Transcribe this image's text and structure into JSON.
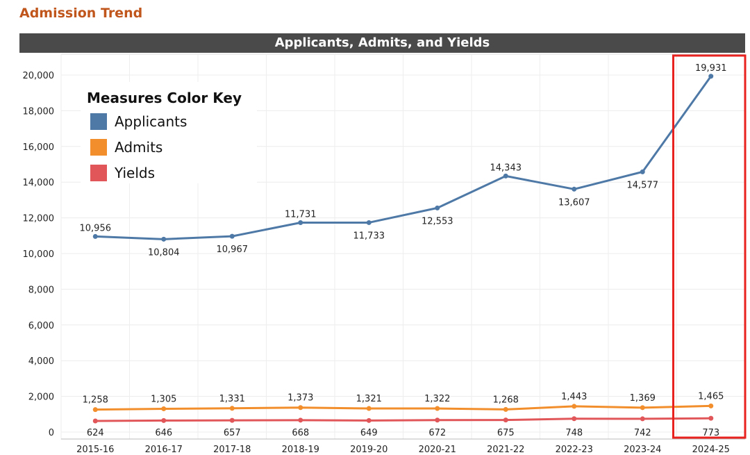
{
  "page": {
    "title": "Admission Trend"
  },
  "colors": {
    "title": "#c0561c",
    "header_bg": "#4a4a4a",
    "applicants": "#4e79a7",
    "admits": "#f28e2b",
    "yields": "#e15759",
    "highlight": "#e8231f",
    "grid": "#ececec"
  },
  "chart_data": {
    "type": "line",
    "title": "Applicants, Admits, and Yields",
    "xlabel": "",
    "ylabel": "",
    "categories": [
      "2015-16",
      "2016-17",
      "2017-18",
      "2018-19",
      "2019-20",
      "2020-21",
      "2021-22",
      "2022-23",
      "2023-24",
      "2024-25"
    ],
    "ylim": [
      0,
      20800
    ],
    "yticks": [
      0,
      2000,
      4000,
      6000,
      8000,
      10000,
      12000,
      14000,
      16000,
      18000,
      20000
    ],
    "ytick_labels": [
      "0",
      "2,000",
      "4,000",
      "6,000",
      "8,000",
      "10,000",
      "12,000",
      "14,000",
      "16,000",
      "18,000",
      "20,000"
    ],
    "grid": true,
    "legend": {
      "title": "Measures Color Key",
      "placement": "top-left"
    },
    "series": [
      {
        "name": "Applicants",
        "color": "#4e79a7",
        "values": [
          10956,
          10804,
          10967,
          11731,
          11733,
          12553,
          14343,
          13607,
          14577,
          19931
        ],
        "labels": [
          "10,956",
          "10,804",
          "10,967",
          "11,731",
          "11,733",
          "12,553",
          "14,343",
          "13,607",
          "14,577",
          "19,931"
        ]
      },
      {
        "name": "Admits",
        "color": "#f28e2b",
        "values": [
          1258,
          1305,
          1331,
          1373,
          1321,
          1322,
          1268,
          1443,
          1369,
          1465
        ],
        "labels": [
          "1,258",
          "1,305",
          "1,331",
          "1,373",
          "1,321",
          "1,322",
          "1,268",
          "1,443",
          "1,369",
          "1,465"
        ]
      },
      {
        "name": "Yields",
        "color": "#e15759",
        "values": [
          624,
          646,
          657,
          668,
          649,
          672,
          675,
          748,
          742,
          773
        ],
        "labels": [
          "624",
          "646",
          "657",
          "668",
          "649",
          "672",
          "675",
          "748",
          "742",
          "773"
        ]
      }
    ],
    "highlight_category": "2024-25"
  }
}
